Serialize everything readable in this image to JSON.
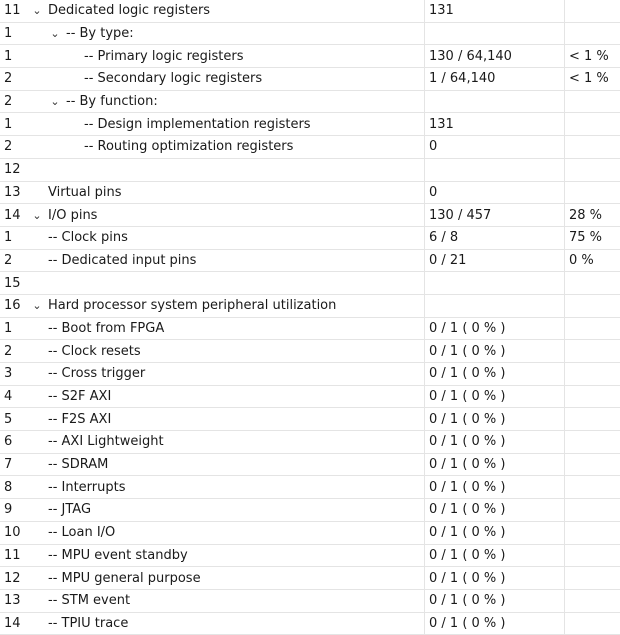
{
  "rows": [
    {
      "num": "11",
      "label": "Dedicated logic registers",
      "usage": "131",
      "pct": ""
    },
    {
      "num": "1",
      "label": "-- By type:",
      "usage": "",
      "pct": ""
    },
    {
      "num": "1",
      "label": "-- Primary logic registers",
      "usage": "130 / 64,140",
      "pct": "< 1 %"
    },
    {
      "num": "2",
      "label": "-- Secondary logic registers",
      "usage": "1 / 64,140",
      "pct": "< 1 %"
    },
    {
      "num": "2",
      "label": "-- By function:",
      "usage": "",
      "pct": ""
    },
    {
      "num": "1",
      "label": "-- Design implementation registers",
      "usage": "131",
      "pct": ""
    },
    {
      "num": "2",
      "label": "-- Routing optimization registers",
      "usage": "0",
      "pct": ""
    },
    {
      "num": "12",
      "label": "",
      "usage": "",
      "pct": ""
    },
    {
      "num": "13",
      "label": "Virtual pins",
      "usage": "0",
      "pct": ""
    },
    {
      "num": "14",
      "label": "I/O pins",
      "usage": "130 / 457",
      "pct": "28 %"
    },
    {
      "num": "1",
      "label": "-- Clock pins",
      "usage": "6 / 8",
      "pct": "75 %"
    },
    {
      "num": "2",
      "label": "-- Dedicated input pins",
      "usage": "0 / 21",
      "pct": "0 %"
    },
    {
      "num": "15",
      "label": "",
      "usage": "",
      "pct": ""
    },
    {
      "num": "16",
      "label": "Hard processor system peripheral utilization",
      "usage": "",
      "pct": ""
    },
    {
      "num": "1",
      "label": "-- Boot from FPGA",
      "usage": "0 / 1 ( 0 % )",
      "pct": ""
    },
    {
      "num": "2",
      "label": "-- Clock resets",
      "usage": "0 / 1 ( 0 % )",
      "pct": ""
    },
    {
      "num": "3",
      "label": "-- Cross trigger",
      "usage": "0 / 1 ( 0 % )",
      "pct": ""
    },
    {
      "num": "4",
      "label": "-- S2F AXI",
      "usage": "0 / 1 ( 0 % )",
      "pct": ""
    },
    {
      "num": "5",
      "label": "-- F2S AXI",
      "usage": "0 / 1 ( 0 % )",
      "pct": ""
    },
    {
      "num": "6",
      "label": "-- AXI Lightweight",
      "usage": "0 / 1 ( 0 % )",
      "pct": ""
    },
    {
      "num": "7",
      "label": "-- SDRAM",
      "usage": "0 / 1 ( 0 % )",
      "pct": ""
    },
    {
      "num": "8",
      "label": "-- Interrupts",
      "usage": "0 / 1 ( 0 % )",
      "pct": ""
    },
    {
      "num": "9",
      "label": "-- JTAG",
      "usage": "0 / 1 ( 0 % )",
      "pct": ""
    },
    {
      "num": "10",
      "label": "-- Loan I/O",
      "usage": "0 / 1 ( 0 % )",
      "pct": ""
    },
    {
      "num": "11",
      "label": "-- MPU event standby",
      "usage": "0 / 1 ( 0 % )",
      "pct": ""
    },
    {
      "num": "12",
      "label": "-- MPU general purpose",
      "usage": "0 / 1 ( 0 % )",
      "pct": ""
    },
    {
      "num": "13",
      "label": "-- STM event",
      "usage": "0 / 1 ( 0 % )",
      "pct": ""
    },
    {
      "num": "14",
      "label": "-- TPIU trace",
      "usage": "0 / 1 ( 0 % )",
      "pct": ""
    }
  ],
  "icons": {
    "expanded": "chevron-down-icon"
  }
}
